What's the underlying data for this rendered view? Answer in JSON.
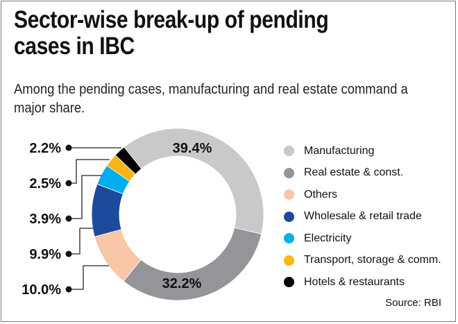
{
  "title": "Sector-wise break-up of pending cases in IBC",
  "title_lines": [
    "Sector-wise break-up of pending",
    "cases in IBC"
  ],
  "subtitle": "Among the pending cases, manufacturing and real estate command a major share.",
  "source": "Source: RBI",
  "chart_data": {
    "type": "pie",
    "donut": true,
    "title": "Sector-wise break-up of pending cases in IBC",
    "legend_position": "right",
    "categories": [
      "Manufacturing",
      "Real estate & const.",
      "Others",
      "Wholesale & retail trade",
      "Electricity",
      "Transport, storage & comm.",
      "Hotels & restaurants"
    ],
    "values": [
      39.4,
      32.2,
      10.0,
      9.9,
      3.9,
      2.5,
      2.2
    ],
    "labels": [
      "39.4%",
      "32.2%",
      "10.0%",
      "9.9%",
      "3.9%",
      "2.5%",
      "2.2%"
    ],
    "colors": [
      "#c8c9cb",
      "#939598",
      "#f9c6a6",
      "#1d4a9c",
      "#00aeef",
      "#fbb514",
      "#000000"
    ]
  }
}
